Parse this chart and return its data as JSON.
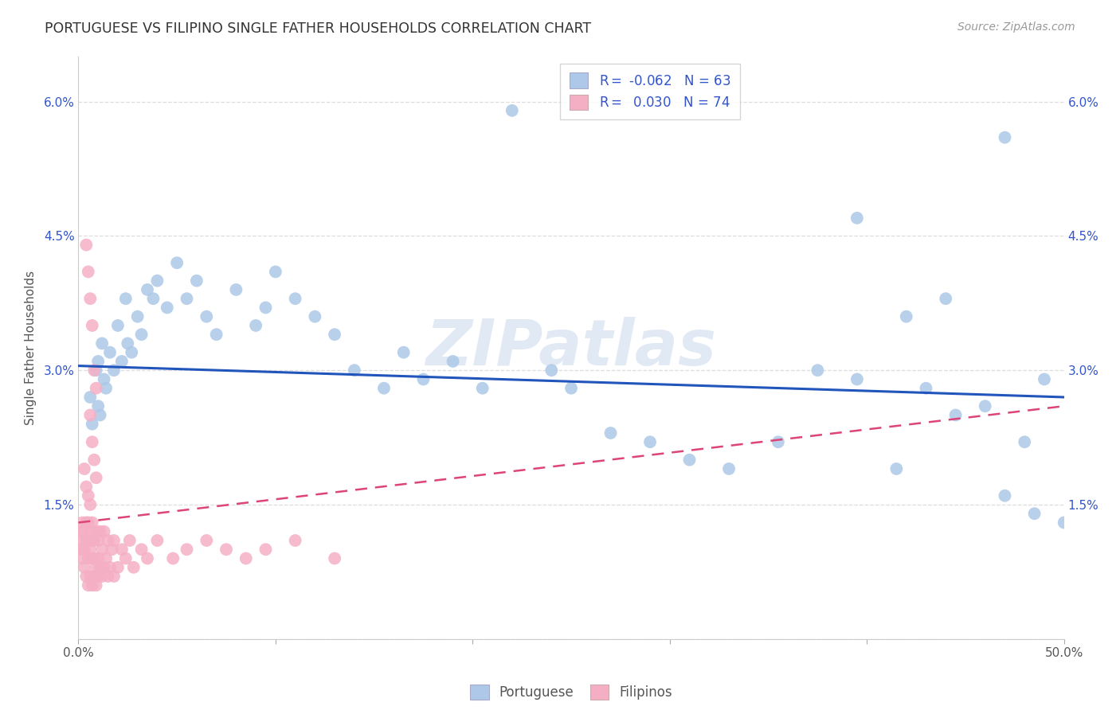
{
  "title": "PORTUGUESE VS FILIPINO SINGLE FATHER HOUSEHOLDS CORRELATION CHART",
  "source": "Source: ZipAtlas.com",
  "ylabel": "Single Father Households",
  "watermark": "ZIPatlas",
  "xlim": [
    0.0,
    0.5
  ],
  "ylim": [
    0.0,
    0.065
  ],
  "xticks": [
    0.0,
    0.1,
    0.2,
    0.3,
    0.4,
    0.5
  ],
  "xtick_labels": [
    "0.0%",
    "",
    "",
    "",
    "",
    "50.0%"
  ],
  "yticks": [
    0.0,
    0.015,
    0.03,
    0.045,
    0.06
  ],
  "ytick_labels_left": [
    "",
    "1.5%",
    "3.0%",
    "4.5%",
    "6.0%"
  ],
  "ytick_labels_right": [
    "",
    "1.5%",
    "3.0%",
    "4.5%",
    "6.0%"
  ],
  "blue_color": "#adc8e8",
  "pink_color": "#f5afc5",
  "blue_line_color": "#2255bb",
  "pink_line_color": "#dd4477",
  "legend_text_color": "#3355cc",
  "grid_color": "#dddddd",
  "blue_trend_x0": 0.0,
  "blue_trend_y0": 0.0305,
  "blue_trend_x1": 0.5,
  "blue_trend_y1": 0.027,
  "pink_trend_x0": 0.0,
  "pink_trend_y0": 0.013,
  "pink_trend_x1": 0.5,
  "pink_trend_y1": 0.026,
  "portuguese_x": [
    0.006,
    0.007,
    0.009,
    0.01,
    0.01,
    0.011,
    0.012,
    0.013,
    0.014,
    0.016,
    0.018,
    0.02,
    0.022,
    0.024,
    0.025,
    0.027,
    0.03,
    0.032,
    0.035,
    0.038,
    0.04,
    0.045,
    0.05,
    0.055,
    0.06,
    0.065,
    0.07,
    0.08,
    0.09,
    0.095,
    0.1,
    0.11,
    0.12,
    0.13,
    0.14,
    0.155,
    0.165,
    0.175,
    0.19,
    0.205,
    0.22,
    0.24,
    0.25,
    0.27,
    0.29,
    0.31,
    0.33,
    0.355,
    0.375,
    0.395,
    0.415,
    0.43,
    0.445,
    0.46,
    0.47,
    0.48,
    0.49,
    0.5,
    0.395,
    0.42,
    0.44,
    0.47,
    0.485
  ],
  "portuguese_y": [
    0.027,
    0.024,
    0.03,
    0.026,
    0.031,
    0.025,
    0.033,
    0.029,
    0.028,
    0.032,
    0.03,
    0.035,
    0.031,
    0.038,
    0.033,
    0.032,
    0.036,
    0.034,
    0.039,
    0.038,
    0.04,
    0.037,
    0.042,
    0.038,
    0.04,
    0.036,
    0.034,
    0.039,
    0.035,
    0.037,
    0.041,
    0.038,
    0.036,
    0.034,
    0.03,
    0.028,
    0.032,
    0.029,
    0.031,
    0.028,
    0.059,
    0.03,
    0.028,
    0.023,
    0.022,
    0.02,
    0.019,
    0.022,
    0.03,
    0.029,
    0.019,
    0.028,
    0.025,
    0.026,
    0.016,
    0.022,
    0.029,
    0.013,
    0.047,
    0.036,
    0.038,
    0.056,
    0.014
  ],
  "filipino_x": [
    0.001,
    0.001,
    0.002,
    0.002,
    0.002,
    0.003,
    0.003,
    0.003,
    0.004,
    0.004,
    0.004,
    0.005,
    0.005,
    0.005,
    0.005,
    0.006,
    0.006,
    0.006,
    0.007,
    0.007,
    0.007,
    0.007,
    0.008,
    0.008,
    0.008,
    0.009,
    0.009,
    0.009,
    0.01,
    0.01,
    0.01,
    0.011,
    0.011,
    0.012,
    0.012,
    0.013,
    0.013,
    0.014,
    0.015,
    0.015,
    0.016,
    0.017,
    0.018,
    0.018,
    0.02,
    0.022,
    0.024,
    0.026,
    0.028,
    0.032,
    0.035,
    0.04,
    0.048,
    0.055,
    0.065,
    0.075,
    0.085,
    0.095,
    0.11,
    0.13,
    0.004,
    0.005,
    0.006,
    0.007,
    0.008,
    0.009,
    0.006,
    0.007,
    0.008,
    0.009,
    0.003,
    0.004,
    0.005,
    0.006
  ],
  "filipino_y": [
    0.01,
    0.012,
    0.009,
    0.011,
    0.013,
    0.008,
    0.01,
    0.012,
    0.007,
    0.011,
    0.013,
    0.006,
    0.009,
    0.011,
    0.013,
    0.007,
    0.01,
    0.012,
    0.006,
    0.009,
    0.011,
    0.013,
    0.007,
    0.009,
    0.011,
    0.006,
    0.008,
    0.012,
    0.007,
    0.009,
    0.011,
    0.008,
    0.012,
    0.007,
    0.01,
    0.008,
    0.012,
    0.009,
    0.007,
    0.011,
    0.008,
    0.01,
    0.007,
    0.011,
    0.008,
    0.01,
    0.009,
    0.011,
    0.008,
    0.01,
    0.009,
    0.011,
    0.009,
    0.01,
    0.011,
    0.01,
    0.009,
    0.01,
    0.011,
    0.009,
    0.044,
    0.041,
    0.038,
    0.035,
    0.03,
    0.028,
    0.025,
    0.022,
    0.02,
    0.018,
    0.019,
    0.017,
    0.016,
    0.015
  ]
}
